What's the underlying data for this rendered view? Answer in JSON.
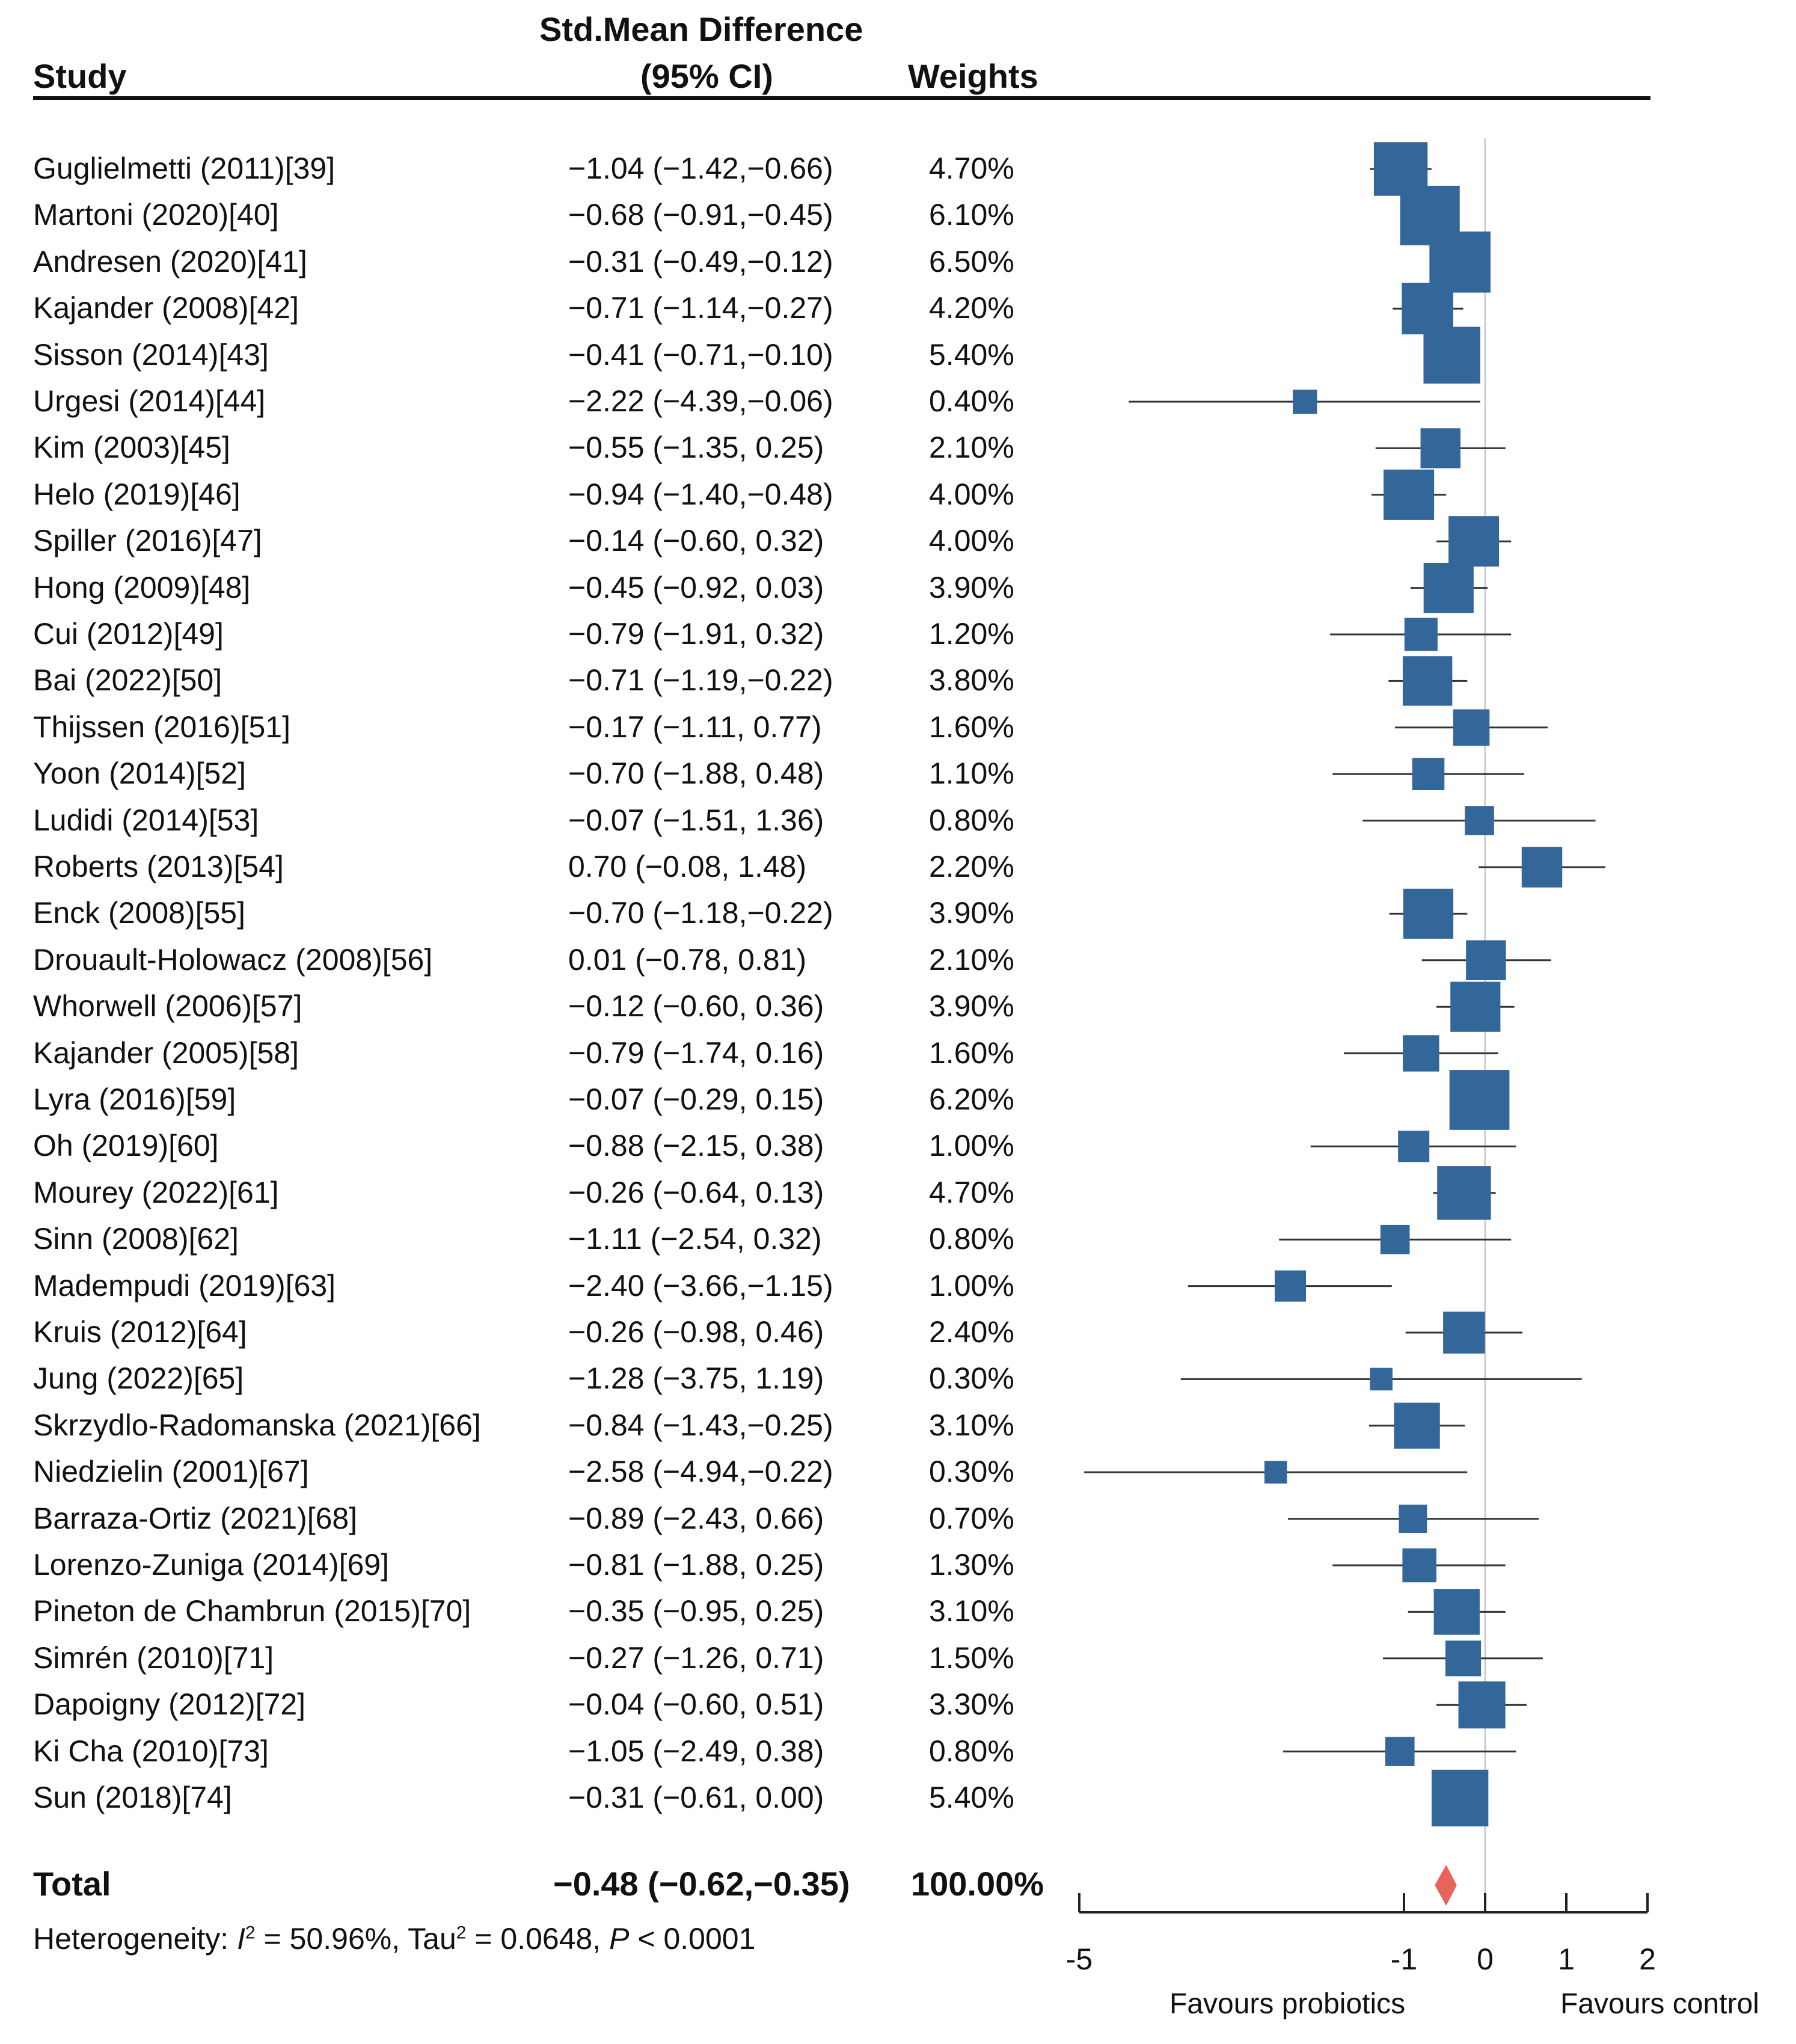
{
  "header": {
    "study": "Study",
    "smd_line1": "Std.Mean Difference",
    "smd_line2": "(95% CI)",
    "weights": "Weights"
  },
  "chart_data": {
    "type": "forest",
    "xlim": [
      -5,
      2
    ],
    "x_ticks": [
      "-5",
      "-1",
      "0",
      "1",
      "2"
    ],
    "x_tick_values": [
      -5,
      -1,
      0,
      1,
      2
    ],
    "left_label": "Favours probiotics",
    "right_label": "Favours control",
    "studies": [
      {
        "name": "Guglielmetti (2011)[39]",
        "ci_text": "−1.04 (−1.42,−0.66)",
        "weight_text": "4.70%",
        "est": -1.04,
        "lo": -1.42,
        "hi": -0.66,
        "weight": 4.7
      },
      {
        "name": "Martoni (2020)[40]",
        "ci_text": "−0.68 (−0.91,−0.45)",
        "weight_text": "6.10%",
        "est": -0.68,
        "lo": -0.91,
        "hi": -0.45,
        "weight": 6.1
      },
      {
        "name": "Andresen (2020)[41]",
        "ci_text": "−0.31 (−0.49,−0.12)",
        "weight_text": "6.50%",
        "est": -0.31,
        "lo": -0.49,
        "hi": -0.12,
        "weight": 6.5
      },
      {
        "name": "Kajander (2008)[42]",
        "ci_text": "−0.71 (−1.14,−0.27)",
        "weight_text": "4.20%",
        "est": -0.71,
        "lo": -1.14,
        "hi": -0.27,
        "weight": 4.2
      },
      {
        "name": "Sisson (2014)[43]",
        "ci_text": "−0.41 (−0.71,−0.10)",
        "weight_text": "5.40%",
        "est": -0.41,
        "lo": -0.71,
        "hi": -0.1,
        "weight": 5.4
      },
      {
        "name": "Urgesi (2014)[44]",
        "ci_text": "−2.22 (−4.39,−0.06)",
        "weight_text": "0.40%",
        "est": -2.22,
        "lo": -4.39,
        "hi": -0.06,
        "weight": 0.4
      },
      {
        "name": "Kim (2003)[45]",
        "ci_text": "−0.55 (−1.35, 0.25)",
        "weight_text": "2.10%",
        "est": -0.55,
        "lo": -1.35,
        "hi": 0.25,
        "weight": 2.1
      },
      {
        "name": "Helo (2019)[46]",
        "ci_text": "−0.94 (−1.40,−0.48)",
        "weight_text": "4.00%",
        "est": -0.94,
        "lo": -1.4,
        "hi": -0.48,
        "weight": 4.0
      },
      {
        "name": "Spiller (2016)[47]",
        "ci_text": "−0.14 (−0.60, 0.32)",
        "weight_text": "4.00%",
        "est": -0.14,
        "lo": -0.6,
        "hi": 0.32,
        "weight": 4.0
      },
      {
        "name": "Hong (2009)[48]",
        "ci_text": "−0.45 (−0.92, 0.03)",
        "weight_text": "3.90%",
        "est": -0.45,
        "lo": -0.92,
        "hi": 0.03,
        "weight": 3.9
      },
      {
        "name": "Cui (2012)[49]",
        "ci_text": "−0.79 (−1.91, 0.32)",
        "weight_text": "1.20%",
        "est": -0.79,
        "lo": -1.91,
        "hi": 0.32,
        "weight": 1.2
      },
      {
        "name": "Bai (2022)[50]",
        "ci_text": "−0.71 (−1.19,−0.22)",
        "weight_text": "3.80%",
        "est": -0.71,
        "lo": -1.19,
        "hi": -0.22,
        "weight": 3.8
      },
      {
        "name": "Thijssen (2016)[51]",
        "ci_text": "−0.17 (−1.11, 0.77)",
        "weight_text": "1.60%",
        "est": -0.17,
        "lo": -1.11,
        "hi": 0.77,
        "weight": 1.6
      },
      {
        "name": "Yoon (2014)[52]",
        "ci_text": "−0.70 (−1.88, 0.48)",
        "weight_text": "1.10%",
        "est": -0.7,
        "lo": -1.88,
        "hi": 0.48,
        "weight": 1.1
      },
      {
        "name": "Ludidi (2014)[53]",
        "ci_text": "−0.07 (−1.51, 1.36)",
        "weight_text": "0.80%",
        "est": -0.07,
        "lo": -1.51,
        "hi": 1.36,
        "weight": 0.8
      },
      {
        "name": "Roberts (2013)[54]",
        "ci_text": "0.70 (−0.08, 1.48)",
        "weight_text": "2.20%",
        "est": 0.7,
        "lo": -0.08,
        "hi": 1.48,
        "weight": 2.2
      },
      {
        "name": "Enck (2008)[55]",
        "ci_text": "−0.70 (−1.18,−0.22)",
        "weight_text": "3.90%",
        "est": -0.7,
        "lo": -1.18,
        "hi": -0.22,
        "weight": 3.9
      },
      {
        "name": "Drouault-Holowacz (2008)[56]",
        "ci_text": "0.01 (−0.78, 0.81)",
        "weight_text": "2.10%",
        "est": 0.01,
        "lo": -0.78,
        "hi": 0.81,
        "weight": 2.1
      },
      {
        "name": "Whorwell (2006)[57]",
        "ci_text": "−0.12 (−0.60, 0.36)",
        "weight_text": "3.90%",
        "est": -0.12,
        "lo": -0.6,
        "hi": 0.36,
        "weight": 3.9
      },
      {
        "name": "Kajander (2005)[58]",
        "ci_text": "−0.79 (−1.74, 0.16)",
        "weight_text": "1.60%",
        "est": -0.79,
        "lo": -1.74,
        "hi": 0.16,
        "weight": 1.6
      },
      {
        "name": "Lyra (2016)[59]",
        "ci_text": "−0.07 (−0.29, 0.15)",
        "weight_text": "6.20%",
        "est": -0.07,
        "lo": -0.29,
        "hi": 0.15,
        "weight": 6.2
      },
      {
        "name": "Oh (2019)[60]",
        "ci_text": "−0.88 (−2.15, 0.38)",
        "weight_text": "1.00%",
        "est": -0.88,
        "lo": -2.15,
        "hi": 0.38,
        "weight": 1.0
      },
      {
        "name": "Mourey (2022)[61]",
        "ci_text": "−0.26 (−0.64, 0.13)",
        "weight_text": "4.70%",
        "est": -0.26,
        "lo": -0.64,
        "hi": 0.13,
        "weight": 4.7
      },
      {
        "name": "Sinn (2008)[62]",
        "ci_text": "−1.11 (−2.54, 0.32)",
        "weight_text": "0.80%",
        "est": -1.11,
        "lo": -2.54,
        "hi": 0.32,
        "weight": 0.8
      },
      {
        "name": "Madempudi (2019)[63]",
        "ci_text": "−2.40 (−3.66,−1.15)",
        "weight_text": "1.00%",
        "est": -2.4,
        "lo": -3.66,
        "hi": -1.15,
        "weight": 1.0
      },
      {
        "name": "Kruis (2012)[64]",
        "ci_text": "−0.26 (−0.98, 0.46)",
        "weight_text": "2.40%",
        "est": -0.26,
        "lo": -0.98,
        "hi": 0.46,
        "weight": 2.4
      },
      {
        "name": "Jung (2022)[65]",
        "ci_text": "−1.28 (−3.75, 1.19)",
        "weight_text": "0.30%",
        "est": -1.28,
        "lo": -3.75,
        "hi": 1.19,
        "weight": 0.3
      },
      {
        "name": "Skrzydlo-Radomanska (2021)[66]",
        "ci_text": "−0.84 (−1.43,−0.25)",
        "weight_text": "3.10%",
        "est": -0.84,
        "lo": -1.43,
        "hi": -0.25,
        "weight": 3.1
      },
      {
        "name": "Niedzielin (2001)[67]",
        "ci_text": "−2.58 (−4.94,−0.22)",
        "weight_text": "0.30%",
        "est": -2.58,
        "lo": -4.94,
        "hi": -0.22,
        "weight": 0.3
      },
      {
        "name": "Barraza-Ortiz (2021)[68]",
        "ci_text": "−0.89 (−2.43, 0.66)",
        "weight_text": "0.70%",
        "est": -0.89,
        "lo": -2.43,
        "hi": 0.66,
        "weight": 0.7
      },
      {
        "name": "Lorenzo-Zuniga (2014)[69]",
        "ci_text": "−0.81 (−1.88, 0.25)",
        "weight_text": "1.30%",
        "est": -0.81,
        "lo": -1.88,
        "hi": 0.25,
        "weight": 1.3
      },
      {
        "name": "Pineton de Chambrun (2015)[70]",
        "ci_text": "−0.35 (−0.95, 0.25)",
        "weight_text": "3.10%",
        "est": -0.35,
        "lo": -0.95,
        "hi": 0.25,
        "weight": 3.1
      },
      {
        "name": "Simrén (2010)[71]",
        "ci_text": "−0.27 (−1.26, 0.71)",
        "weight_text": "1.50%",
        "est": -0.27,
        "lo": -1.26,
        "hi": 0.71,
        "weight": 1.5
      },
      {
        "name": "Dapoigny (2012)[72]",
        "ci_text": "−0.04 (−0.60, 0.51)",
        "weight_text": "3.30%",
        "est": -0.04,
        "lo": -0.6,
        "hi": 0.51,
        "weight": 3.3
      },
      {
        "name": "Ki Cha (2010)[73]",
        "ci_text": "−1.05 (−2.49, 0.38)",
        "weight_text": "0.80%",
        "est": -1.05,
        "lo": -2.49,
        "hi": 0.38,
        "weight": 0.8
      },
      {
        "name": "Sun (2018)[74]",
        "ci_text": "−0.31 (−0.61, 0.00)",
        "weight_text": "5.40%",
        "est": -0.31,
        "lo": -0.61,
        "hi": 0.0,
        "weight": 5.4
      }
    ],
    "total": {
      "label": "Total",
      "ci_text": "−0.48 (−0.62,−0.35)",
      "weight_text": "100.00%",
      "est": -0.48,
      "lo": -0.62,
      "hi": -0.35
    },
    "heterogeneity": {
      "prefix": "Heterogeneity: ",
      "i_symbol": "I",
      "i_sup": "2",
      "i_value": " = 50.96%, Tau",
      "tau_sup": "2",
      "tau_value": " = 0.0648, ",
      "p_symbol": "P",
      "p_value": " < 0.0001"
    },
    "colors": {
      "box": "#336699",
      "diamond": "#e8635a",
      "ci": "#333333",
      "zero_line": "#cccccc"
    }
  }
}
